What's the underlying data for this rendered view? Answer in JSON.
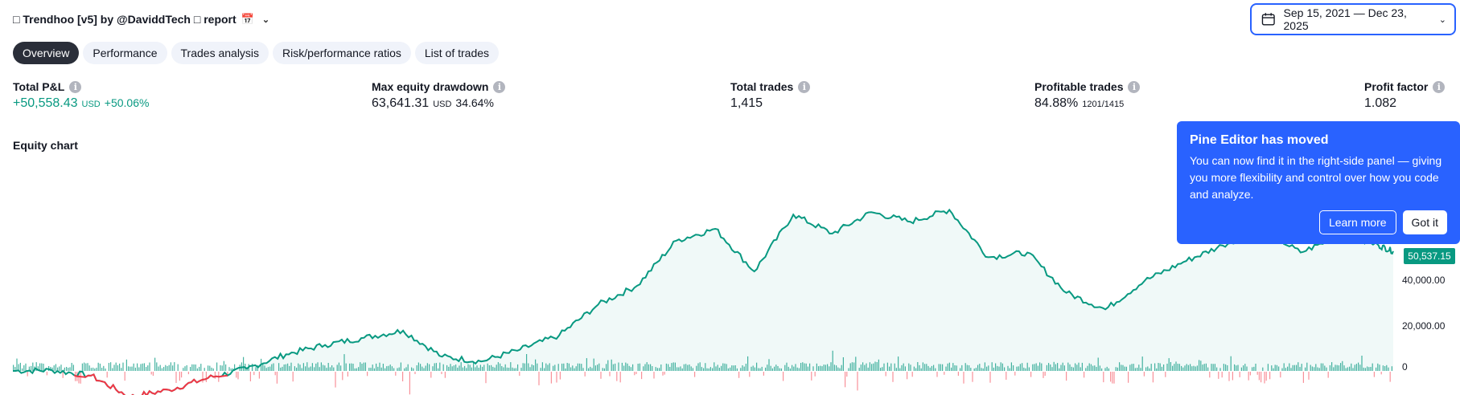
{
  "header": {
    "title": "□ Trendhoo [v5] by @DaviddTech □ report",
    "title_icon": "calendar-icon",
    "date_range": "Sep 15, 2021 — Dec 23, 2025"
  },
  "tabs": [
    {
      "label": "Overview",
      "active": true
    },
    {
      "label": "Performance",
      "active": false
    },
    {
      "label": "Trades analysis",
      "active": false
    },
    {
      "label": "Risk/performance ratios",
      "active": false
    },
    {
      "label": "List of trades",
      "active": false
    }
  ],
  "stats": {
    "total_pnl": {
      "label": "Total P&L",
      "value": "+50,558.43",
      "unit": "USD",
      "pct": "+50.06%"
    },
    "max_drawdown": {
      "label": "Max equity drawdown",
      "value": "63,641.31",
      "unit": "USD",
      "pct": "34.64%"
    },
    "total_trades": {
      "label": "Total trades",
      "value": "1,415"
    },
    "profitable_trades": {
      "label": "Profitable trades",
      "value": "84.88%",
      "sub": "1201/1415"
    },
    "profit_factor": {
      "label": "Profit factor",
      "value": "1.082"
    }
  },
  "chart_section_title": "Equity chart",
  "popup": {
    "title": "Pine Editor has moved",
    "text": "You can now find it in the right-side panel — giving you more flexibility and control over how you code and analyze.",
    "learn_more": "Learn more",
    "got_it": "Got it"
  },
  "colors": {
    "accent": "#2962ff",
    "profit": "#089981",
    "loss": "#f23645"
  },
  "chart_data": {
    "type": "area",
    "title": "Equity chart",
    "xlabel": "",
    "ylabel": "",
    "x": [
      0,
      40,
      80,
      120,
      160,
      200,
      240,
      280,
      320,
      360,
      400,
      440,
      480,
      520,
      560,
      600,
      640,
      680,
      720,
      760,
      800,
      840,
      880,
      920,
      960,
      1000,
      1040,
      1080,
      1120,
      1160,
      1200,
      1240,
      1280,
      1320,
      1360,
      1400,
      1415
    ],
    "series": [
      {
        "values": [
          0,
          300,
          -2000,
          -11000,
          -8000,
          -3000,
          1000,
          7000,
          11000,
          14000,
          17000,
          6000,
          4000,
          9000,
          15000,
          28000,
          36000,
          55000,
          60000,
          42000,
          66000,
          58000,
          67000,
          63000,
          68000,
          48000,
          50000,
          33000,
          26000,
          38000,
          46000,
          53000,
          60000,
          50000,
          57000,
          53000,
          50537.15
        ]
      }
    ],
    "y_ticks": [
      "0",
      "20,000.00",
      "40,000.00"
    ],
    "last_value_label": "50,537.15",
    "ylim": [
      -12000,
      70000
    ],
    "grid": false
  }
}
